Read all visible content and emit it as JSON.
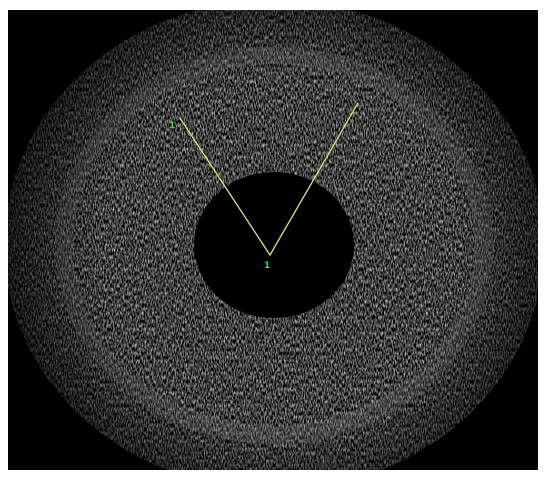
{
  "markers": {
    "left_end": "1",
    "vertex": "1"
  }
}
